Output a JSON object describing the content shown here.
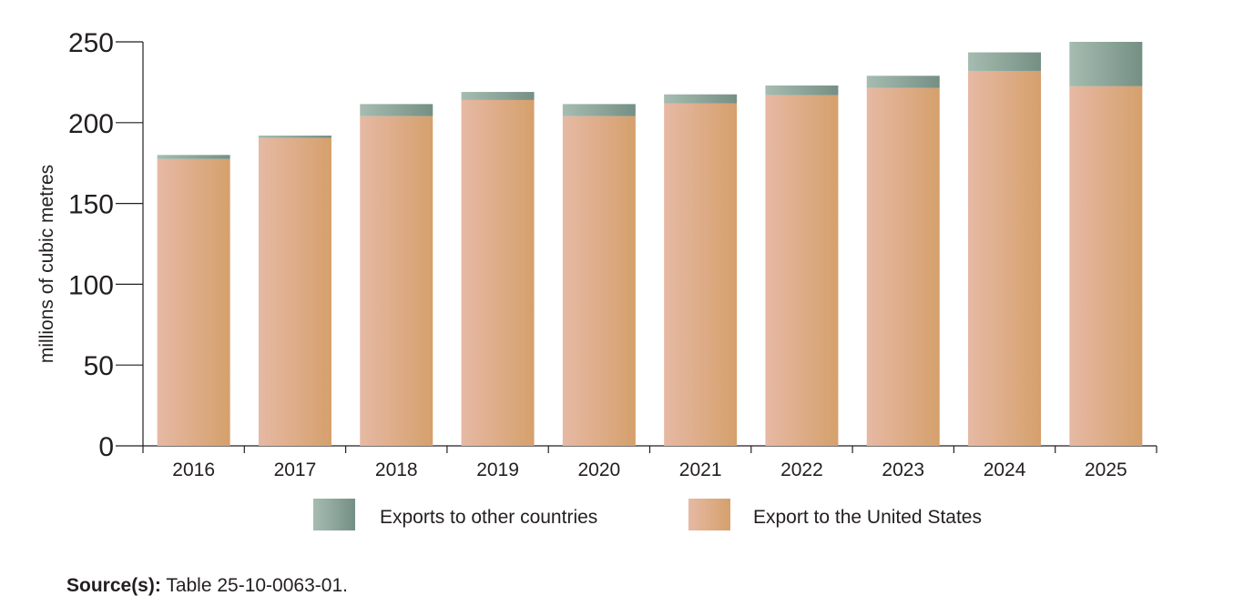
{
  "chart_data": {
    "type": "bar",
    "stacked": true,
    "categories": [
      "2016",
      "2017",
      "2018",
      "2019",
      "2020",
      "2021",
      "2022",
      "2023",
      "2024",
      "2025"
    ],
    "series": [
      {
        "name": "Export to the United States",
        "values": [
          177.5,
          190.5,
          204,
          214,
          204,
          212,
          217,
          221.5,
          232,
          222.5
        ],
        "color": "#d9a36c"
      },
      {
        "name": "Exports to other countries",
        "values": [
          2.5,
          1.5,
          7.5,
          5,
          7.5,
          5.5,
          6,
          7.5,
          11.5,
          27.5
        ],
        "color": "#7f9a8c"
      }
    ],
    "ylabel": "millions of cubic metres",
    "xlabel": "",
    "ylim": [
      0,
      250
    ],
    "yticks": [
      0,
      50,
      100,
      150,
      200,
      250
    ],
    "grid": false,
    "legend_position": "bottom"
  },
  "legend": {
    "other_label": "Exports to other countries",
    "us_label": "Export to the United States"
  },
  "source": {
    "label": "Source(s):",
    "text": " Table 25-10-0063-01."
  }
}
